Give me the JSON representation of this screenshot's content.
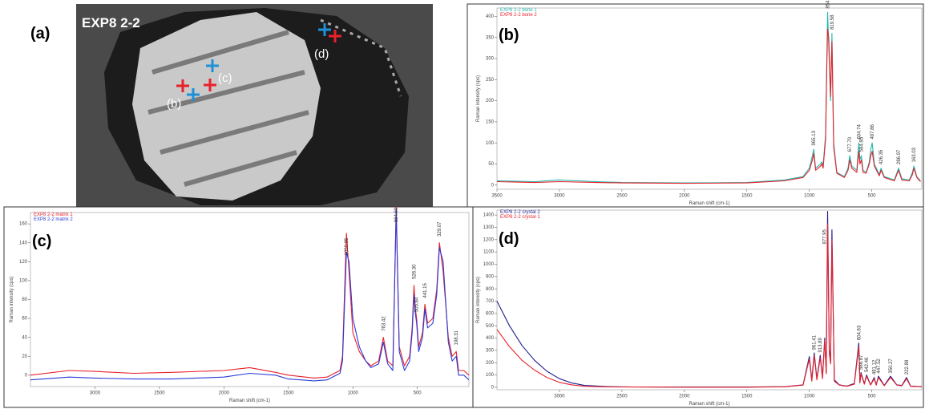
{
  "figure": {
    "panel_a": {
      "label": "(a)",
      "sample": "EXP8 2-2",
      "points": [
        "(b)",
        "(c)",
        "(d)"
      ]
    }
  },
  "chart_data": [
    {
      "type": "line",
      "panel_label": "(b)",
      "x_label": "Raman shift (cm-1)",
      "y_label": "Raman intensity (cps)",
      "x": [
        3500,
        3200,
        3000,
        2700,
        2500,
        2000,
        1500,
        1200,
        1050,
        1000,
        975,
        965,
        950,
        910,
        900,
        890,
        870,
        860,
        854,
        845,
        830,
        819,
        805,
        780,
        720,
        690,
        677,
        660,
        620,
        604,
        595,
        584,
        570,
        545,
        520,
        508,
        497,
        480,
        440,
        426,
        400,
        320,
        286,
        260,
        200,
        175,
        163,
        140,
        110
      ],
      "series": [
        {
          "name": "EXP8 2-2 bone 1",
          "color": "#22b8b0",
          "values": [
            10,
            8,
            12,
            8,
            6,
            5,
            6,
            12,
            20,
            40,
            70,
            85,
            40,
            50,
            55,
            45,
            120,
            300,
            410,
            330,
            200,
            360,
            100,
            30,
            20,
            40,
            70,
            45,
            35,
            100,
            60,
            70,
            35,
            30,
            55,
            85,
            100,
            50,
            25,
            40,
            20,
            12,
            40,
            15,
            12,
            30,
            45,
            20,
            10
          ]
        },
        {
          "name": "EXP8 2-2 bone 2",
          "color": "#e8202a",
          "values": [
            8,
            6,
            8,
            6,
            5,
            4,
            5,
            10,
            18,
            35,
            60,
            75,
            35,
            45,
            50,
            40,
            110,
            280,
            370,
            350,
            210,
            340,
            90,
            28,
            18,
            35,
            60,
            40,
            30,
            80,
            50,
            60,
            30,
            28,
            50,
            70,
            80,
            45,
            22,
            35,
            18,
            10,
            35,
            12,
            10,
            25,
            40,
            18,
            8
          ]
        }
      ],
      "annotations": [
        {
          "text": "965.13",
          "x": 965.13,
          "y": 90
        },
        {
          "text": "854.72",
          "x": 854.72,
          "y": 415
        },
        {
          "text": "819.58",
          "x": 819.58,
          "y": 365
        },
        {
          "text": "677.70",
          "x": 677.7,
          "y": 75
        },
        {
          "text": "604.74",
          "x": 604.74,
          "y": 105
        },
        {
          "text": "584.85",
          "x": 584.85,
          "y": 75
        },
        {
          "text": "497.86",
          "x": 497.86,
          "y": 105
        },
        {
          "text": "426.35",
          "x": 426.35,
          "y": 45
        },
        {
          "text": "286.97",
          "x": 286.97,
          "y": 45
        },
        {
          "text": "163.03",
          "x": 163.03,
          "y": 50
        }
      ],
      "xlim": [
        3500,
        100
      ],
      "xticks": [
        3500,
        3000,
        2500,
        2000,
        1500,
        1000,
        500
      ],
      "ylim": [
        -10,
        420
      ],
      "yticks": [
        0,
        50,
        100,
        150,
        200,
        250,
        300,
        350,
        400
      ]
    },
    {
      "type": "line",
      "panel_label": "(c)",
      "x_label": "Raman shift (cm-1)",
      "y_label": "Raman intensity (cps)",
      "x": [
        3500,
        3200,
        3000,
        2700,
        2400,
        2000,
        1800,
        1600,
        1500,
        1300,
        1200,
        1100,
        1080,
        1050,
        1030,
        1000,
        950,
        900,
        860,
        800,
        763,
        730,
        690,
        664,
        640,
        600,
        560,
        540,
        526,
        515,
        505,
        490,
        460,
        441,
        420,
        380,
        350,
        329,
        300,
        260,
        230,
        198,
        180,
        140,
        100
      ],
      "series": [
        {
          "name": "EXP8 2-2 matrix 1",
          "color": "#e8202a",
          "values": [
            0,
            5,
            4,
            2,
            3,
            5,
            8,
            3,
            0,
            -3,
            -2,
            5,
            20,
            150,
            110,
            45,
            25,
            15,
            10,
            15,
            40,
            15,
            10,
            178,
            30,
            10,
            20,
            50,
            95,
            70,
            60,
            30,
            45,
            75,
            55,
            60,
            90,
            140,
            110,
            40,
            20,
            25,
            5,
            5,
            0
          ]
        },
        {
          "name": "EXP8 2-2 matrix 2",
          "color": "#2a3bd8",
          "values": [
            -5,
            -2,
            -3,
            -4,
            -4,
            -2,
            2,
            0,
            -4,
            -6,
            -5,
            2,
            15,
            130,
            120,
            60,
            30,
            15,
            8,
            12,
            35,
            12,
            5,
            175,
            25,
            5,
            15,
            45,
            85,
            65,
            55,
            25,
            40,
            70,
            50,
            55,
            85,
            135,
            120,
            35,
            15,
            20,
            0,
            0,
            -5
          ]
        }
      ],
      "annotations": [
        {
          "text": "1050.95",
          "x": 1050.95,
          "y": 125
        },
        {
          "text": "763.42",
          "x": 763.42,
          "y": 45
        },
        {
          "text": "664.69",
          "x": 664.69,
          "y": 160
        },
        {
          "text": "526.30",
          "x": 526.3,
          "y": 100
        },
        {
          "text": "505.84",
          "x": 505.84,
          "y": 65
        },
        {
          "text": "441.15",
          "x": 441.15,
          "y": 80
        },
        {
          "text": "329.07",
          "x": 329.07,
          "y": 145
        },
        {
          "text": "198.31",
          "x": 198.31,
          "y": 30
        }
      ],
      "xlim": [
        3500,
        100
      ],
      "xticks": [
        3000,
        2500,
        2000,
        1500,
        1000,
        500
      ],
      "ylim": [
        -12,
        172
      ],
      "yticks": [
        0,
        20,
        40,
        60,
        80,
        100,
        120,
        140,
        160
      ]
    },
    {
      "type": "line",
      "panel_label": "(d)",
      "x_label": "Raman shift (cm-1)",
      "y_label": "Raman intensity (cps)",
      "x": [
        3500,
        3400,
        3300,
        3200,
        3100,
        3000,
        2900,
        2800,
        2600,
        2400,
        2000,
        1500,
        1200,
        1050,
        1000,
        980,
        961,
        940,
        913,
        895,
        877,
        865,
        854,
        840,
        830,
        819,
        800,
        760,
        700,
        640,
        604,
        595,
        587,
        560,
        542,
        510,
        481,
        465,
        447,
        400,
        350,
        300,
        260,
        222,
        190,
        100
      ],
      "series": [
        {
          "name": "EXP8 2-2 crystal 2",
          "color": "#1c1c8c",
          "values": [
            700,
            500,
            340,
            220,
            130,
            70,
            35,
            15,
            5,
            3,
            2,
            2,
            5,
            20,
            250,
            60,
            280,
            70,
            260,
            80,
            400,
            120,
            1430,
            300,
            200,
            1280,
            60,
            20,
            10,
            30,
            360,
            40,
            120,
            30,
            100,
            20,
            80,
            20,
            90,
            15,
            90,
            20,
            15,
            80,
            10,
            5
          ]
        },
        {
          "name": "EXP8 2-2 crystal 1",
          "color": "#e8202a",
          "values": [
            470,
            330,
            220,
            140,
            80,
            40,
            20,
            8,
            3,
            2,
            1,
            1,
            4,
            18,
            230,
            50,
            260,
            60,
            240,
            70,
            380,
            110,
            1330,
            280,
            190,
            1200,
            50,
            18,
            8,
            25,
            330,
            35,
            110,
            25,
            90,
            18,
            70,
            18,
            80,
            12,
            80,
            18,
            12,
            70,
            8,
            4
          ]
        }
      ],
      "annotations": [
        {
          "text": "961.41",
          "x": 961.41,
          "y": 290
        },
        {
          "text": "913.89",
          "x": 913.89,
          "y": 270
        },
        {
          "text": "877.95",
          "x": 877.95,
          "y": 1150
        },
        {
          "text": "604.63",
          "x": 604.63,
          "y": 370
        },
        {
          "text": "586.87",
          "x": 586.87,
          "y": 130
        },
        {
          "text": "542.46",
          "x": 542.46,
          "y": 110
        },
        {
          "text": "481.12",
          "x": 481.12,
          "y": 90
        },
        {
          "text": "447.52",
          "x": 447.52,
          "y": 100
        },
        {
          "text": "350.27",
          "x": 350.27,
          "y": 100
        },
        {
          "text": "222.88",
          "x": 222.88,
          "y": 90
        }
      ],
      "xlim": [
        3500,
        100
      ],
      "xticks": [
        3000,
        2500,
        2000,
        1500,
        1000,
        500
      ],
      "ylim": [
        -20,
        1440
      ],
      "yticks": [
        0,
        100,
        200,
        300,
        400,
        500,
        600,
        700,
        800,
        900,
        1000,
        1100,
        1200,
        1300,
        1400
      ]
    }
  ]
}
